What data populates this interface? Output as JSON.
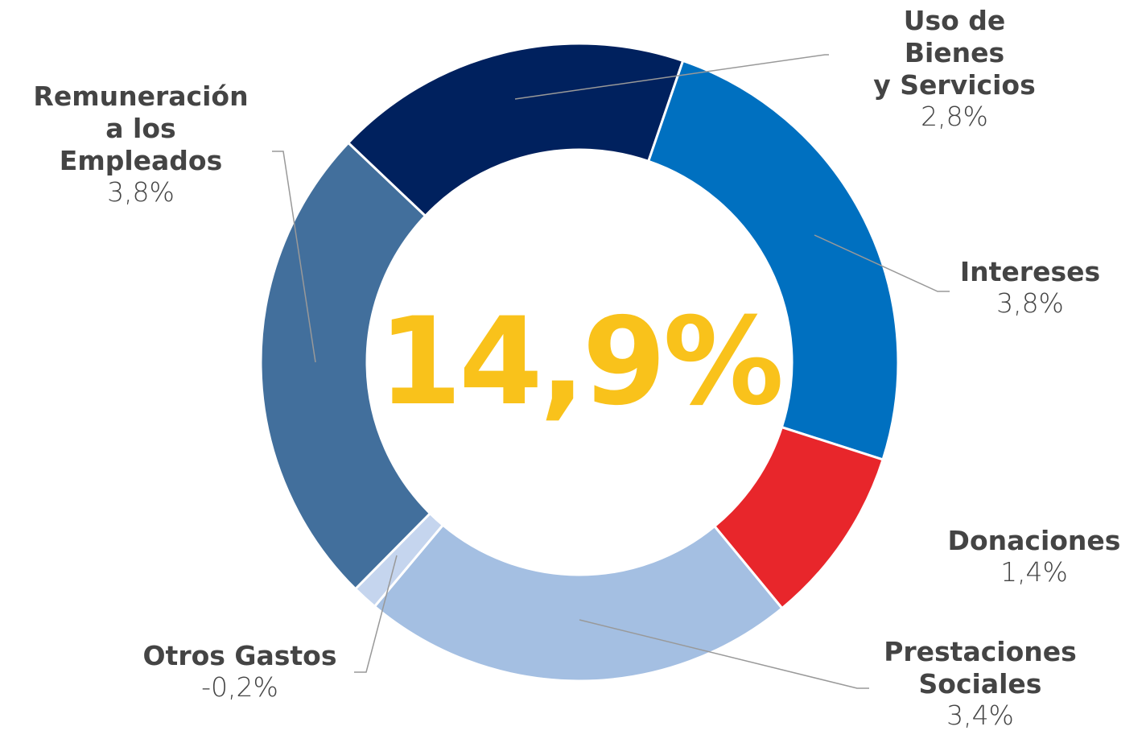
{
  "chart_data": {
    "type": "pie",
    "donut": true,
    "center_label": "14,9%",
    "categories": [
      "Uso de Bienes\ny Servicios",
      "Intereses",
      "Donaciones",
      "Prestaciones\nSociales",
      "Otros Gastos",
      "Remuneración\na los\nEmpleados"
    ],
    "values": [
      2.8,
      3.8,
      1.4,
      3.4,
      -0.2,
      3.8
    ],
    "value_labels": [
      "2,8%",
      "3,8%",
      "1,4%",
      "3,4%",
      "-0,2%",
      "3,8%"
    ],
    "colors": [
      "#00215e",
      "#0070c0",
      "#e8262b",
      "#a4bfe2",
      "#c5d5ee",
      "#426f9c"
    ]
  }
}
